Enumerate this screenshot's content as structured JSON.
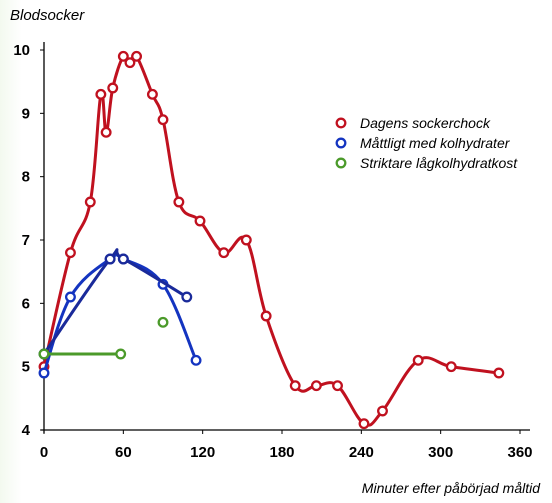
{
  "chart_data": {
    "type": "line",
    "ylabel": "Blodsocker",
    "xlabel": "Minuter efter påbörjad måltid",
    "xlim": [
      0,
      360
    ],
    "ylim": [
      4,
      10
    ],
    "xticks": [
      0,
      60,
      120,
      180,
      240,
      300,
      360
    ],
    "yticks": [
      4,
      5,
      6,
      7,
      8,
      9,
      10
    ],
    "grid": false,
    "legend_position": "right",
    "series": [
      {
        "name": "Dagens sockerchock",
        "color": "#c0111f",
        "points": [
          [
            0,
            5.0
          ],
          [
            20,
            6.8
          ],
          [
            35,
            7.6
          ],
          [
            43,
            9.3
          ],
          [
            47,
            8.7
          ],
          [
            52,
            9.4
          ],
          [
            60,
            9.9
          ],
          [
            65,
            9.8
          ],
          [
            70,
            9.9
          ],
          [
            82,
            9.3
          ],
          [
            90,
            8.9
          ],
          [
            102,
            7.6
          ],
          [
            118,
            7.3
          ],
          [
            136,
            6.8
          ],
          [
            153,
            7.0
          ],
          [
            168,
            5.8
          ],
          [
            190,
            4.7
          ],
          [
            206,
            4.7
          ],
          [
            222,
            4.7
          ],
          [
            242,
            4.1
          ],
          [
            256,
            4.3
          ],
          [
            283,
            5.1
          ],
          [
            308,
            5.0
          ],
          [
            344,
            4.9
          ]
        ]
      },
      {
        "name": "Måttligt med kolhydrater",
        "color": "#1434c0",
        "points": [
          [
            0,
            4.9
          ],
          [
            20,
            6.1
          ],
          [
            50,
            6.7
          ],
          [
            60,
            6.7
          ],
          [
            90,
            6.3
          ],
          [
            115,
            5.1
          ]
        ]
      },
      {
        "name": "Måttligt med kolhydrater (b)",
        "color": "#1a2a9a",
        "points": [
          [
            0,
            5.2
          ],
          [
            50,
            6.7
          ],
          [
            60,
            6.7
          ],
          [
            108,
            6.1
          ]
        ]
      },
      {
        "name": "Striktare lågkolhydratkost",
        "color": "#4b9a2a",
        "points": [
          [
            0,
            5.2
          ],
          [
            58,
            5.2
          ]
        ]
      },
      {
        "name": "Striktare lågkolhydratkost (outlier)",
        "color": "#4b9a2a",
        "points": [
          [
            90,
            5.7
          ]
        ],
        "marker_only": true
      }
    ],
    "legend": [
      {
        "label": "Dagens sockerchock",
        "color": "#c0111f"
      },
      {
        "label": "Måttligt med kolhydrater",
        "color": "#1434c0"
      },
      {
        "label": "Striktare lågkolhydratkost",
        "color": "#4b9a2a"
      }
    ]
  }
}
